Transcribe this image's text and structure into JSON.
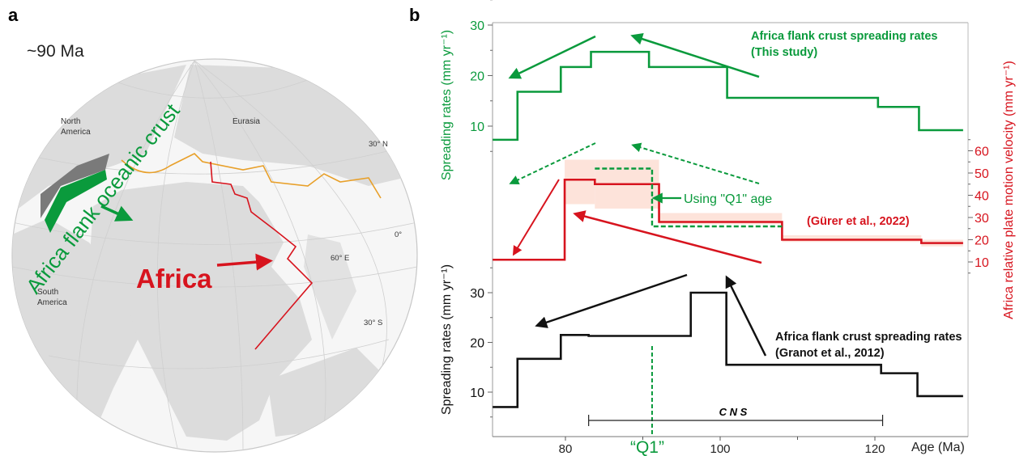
{
  "panel_a": {
    "panel_letter": "a",
    "age_label": "~90 Ma",
    "labels": {
      "north_america": [
        "North",
        "America"
      ],
      "south_america": [
        "South",
        "America"
      ],
      "eurasia": "Eurasia",
      "africa": "Africa",
      "oceanic_crust": "Africa flank oceanic crust",
      "lat_30n": "30° N",
      "lat_0": "0°",
      "lat_30s": "30° S",
      "lon_60e": "60° E"
    },
    "colors": {
      "oceanic_crust": "#0a9a3c",
      "africa": "#d7141e",
      "suture": "#e8a02a",
      "land": "#dcdcdc",
      "ocean": "#f6f6f6"
    }
  },
  "chart_data": {
    "type": "line",
    "panel_letter": "b",
    "x": {
      "label": "Age (Ma)",
      "ticks": [
        80,
        100,
        120
      ],
      "minor_ticks": [
        90,
        110
      ],
      "range": [
        70.6,
        131.4
      ]
    },
    "series": [
      {
        "name": "Africa flank crust spreading rates (This study)",
        "label_lines": [
          "Africa flank crust spreading rates",
          "(This study)"
        ],
        "axis": "left-top",
        "ylabel": "Spreading  rates (mm yr⁻¹)",
        "yticks": [
          10,
          20,
          30
        ],
        "color": "#0a9a3c",
        "steps": [
          [
            70.6,
            73.8,
            7.3
          ],
          [
            73.8,
            79.4,
            16.8
          ],
          [
            79.4,
            83.3,
            21.7
          ],
          [
            83.3,
            90.8,
            24.7
          ],
          [
            90.8,
            100.9,
            21.7
          ],
          [
            100.9,
            120.4,
            15.6
          ],
          [
            120.4,
            125.7,
            13.8
          ],
          [
            125.7,
            131.4,
            9.2
          ]
        ]
      },
      {
        "name": "(Gürer et al., 2022)",
        "axis": "right",
        "ylabel": "Africa relative plate motion velocity (mm yr⁻¹)",
        "yticks": [
          10,
          20,
          30,
          40,
          50,
          60
        ],
        "color": "#d7141e",
        "band_color": "#fde3da",
        "steps": [
          [
            70.6,
            79.9,
            11
          ],
          [
            79.9,
            83.8,
            47
          ],
          [
            83.8,
            92.1,
            45
          ],
          [
            92.1,
            108,
            28
          ],
          [
            108,
            126,
            20
          ],
          [
            126,
            131.4,
            18.5
          ]
        ],
        "bands": [
          [
            79.9,
            83.8,
            36,
            56
          ],
          [
            83.8,
            92.1,
            34,
            56
          ],
          [
            92.1,
            108,
            27,
            32
          ],
          [
            108,
            126,
            19,
            22
          ],
          [
            126,
            131.4,
            17,
            20
          ]
        ]
      },
      {
        "name": "Using \"Q1\" age",
        "axis": "right",
        "color": "#0a9a3c",
        "dashed": true,
        "steps": [
          [
            83.8,
            91.2,
            52
          ],
          [
            91.2,
            108,
            26
          ]
        ]
      },
      {
        "name": "Africa flank crust spreading rates (Granot et al., 2012)",
        "label_lines": [
          "Africa flank crust spreading rates",
          "(Granot et al., 2012)"
        ],
        "axis": "left-bottom",
        "ylabel": "Spreading  rates (mm yr⁻¹)",
        "yticks": [
          10,
          20,
          30
        ],
        "color": "#111111",
        "steps": [
          [
            70.6,
            73.8,
            7
          ],
          [
            73.8,
            79.4,
            16.7
          ],
          [
            79.4,
            83,
            21.5
          ],
          [
            83,
            96.2,
            21.3
          ],
          [
            96.2,
            100.8,
            30
          ],
          [
            100.8,
            120.8,
            15.5
          ],
          [
            120.8,
            125.5,
            13.8
          ],
          [
            125.5,
            131.4,
            9.2
          ]
        ]
      }
    ],
    "annotations": {
      "q1_label": "“Q1”",
      "q1_age": 91.2,
      "cns_label": "C N S",
      "cns_range": [
        83,
        121
      ]
    }
  }
}
